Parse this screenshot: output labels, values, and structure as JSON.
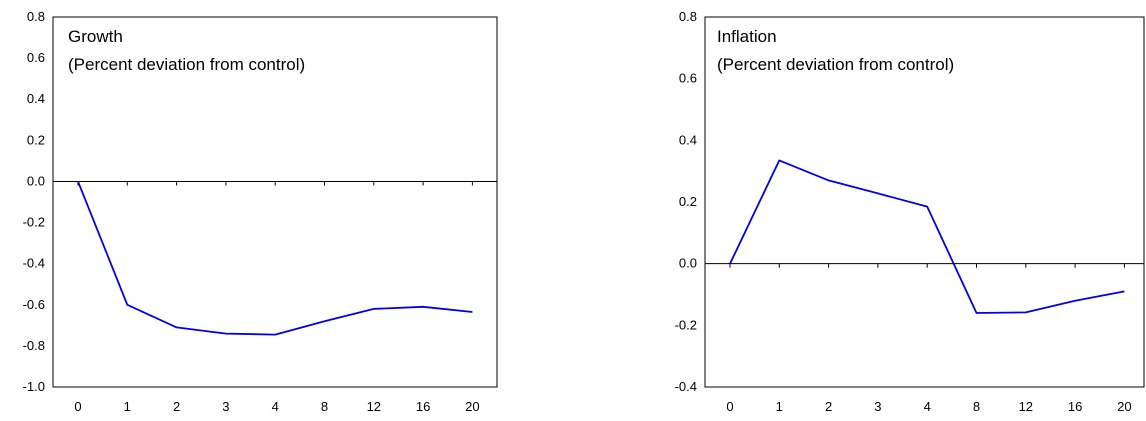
{
  "chart_data": [
    {
      "type": "line",
      "title": "Growth",
      "subtitle": "(Percent deviation from control)",
      "categories": [
        "0",
        "1",
        "2",
        "3",
        "4",
        "8",
        "12",
        "16",
        "20"
      ],
      "y_ticks": [
        "0.8",
        "0.6",
        "0.4",
        "0.2",
        "0.0",
        "-0.2",
        "-0.4",
        "-0.6",
        "-0.8",
        "-1.0"
      ],
      "ylim": [
        -1.0,
        0.8
      ],
      "series": [
        {
          "values": [
            0.0,
            -0.6,
            -0.71,
            -0.74,
            -0.745,
            -0.68,
            -0.62,
            -0.61,
            -0.635
          ],
          "color": "#0000ee"
        }
      ],
      "grid": false
    },
    {
      "type": "line",
      "title": "Inflation",
      "subtitle": "(Percent deviation from control)",
      "categories": [
        "0",
        "1",
        "2",
        "3",
        "4",
        "8",
        "12",
        "16",
        "20"
      ],
      "y_ticks": [
        "0.8",
        "0.6",
        "0.4",
        "0.2",
        "0.0",
        "-0.2",
        "-0.4"
      ],
      "ylim": [
        -0.4,
        0.8
      ],
      "series": [
        {
          "values": [
            0.0,
            0.335,
            0.27,
            0.228,
            0.185,
            -0.16,
            -0.158,
            -0.12,
            -0.09
          ],
          "color": "#0000ee"
        }
      ],
      "grid": false
    }
  ]
}
